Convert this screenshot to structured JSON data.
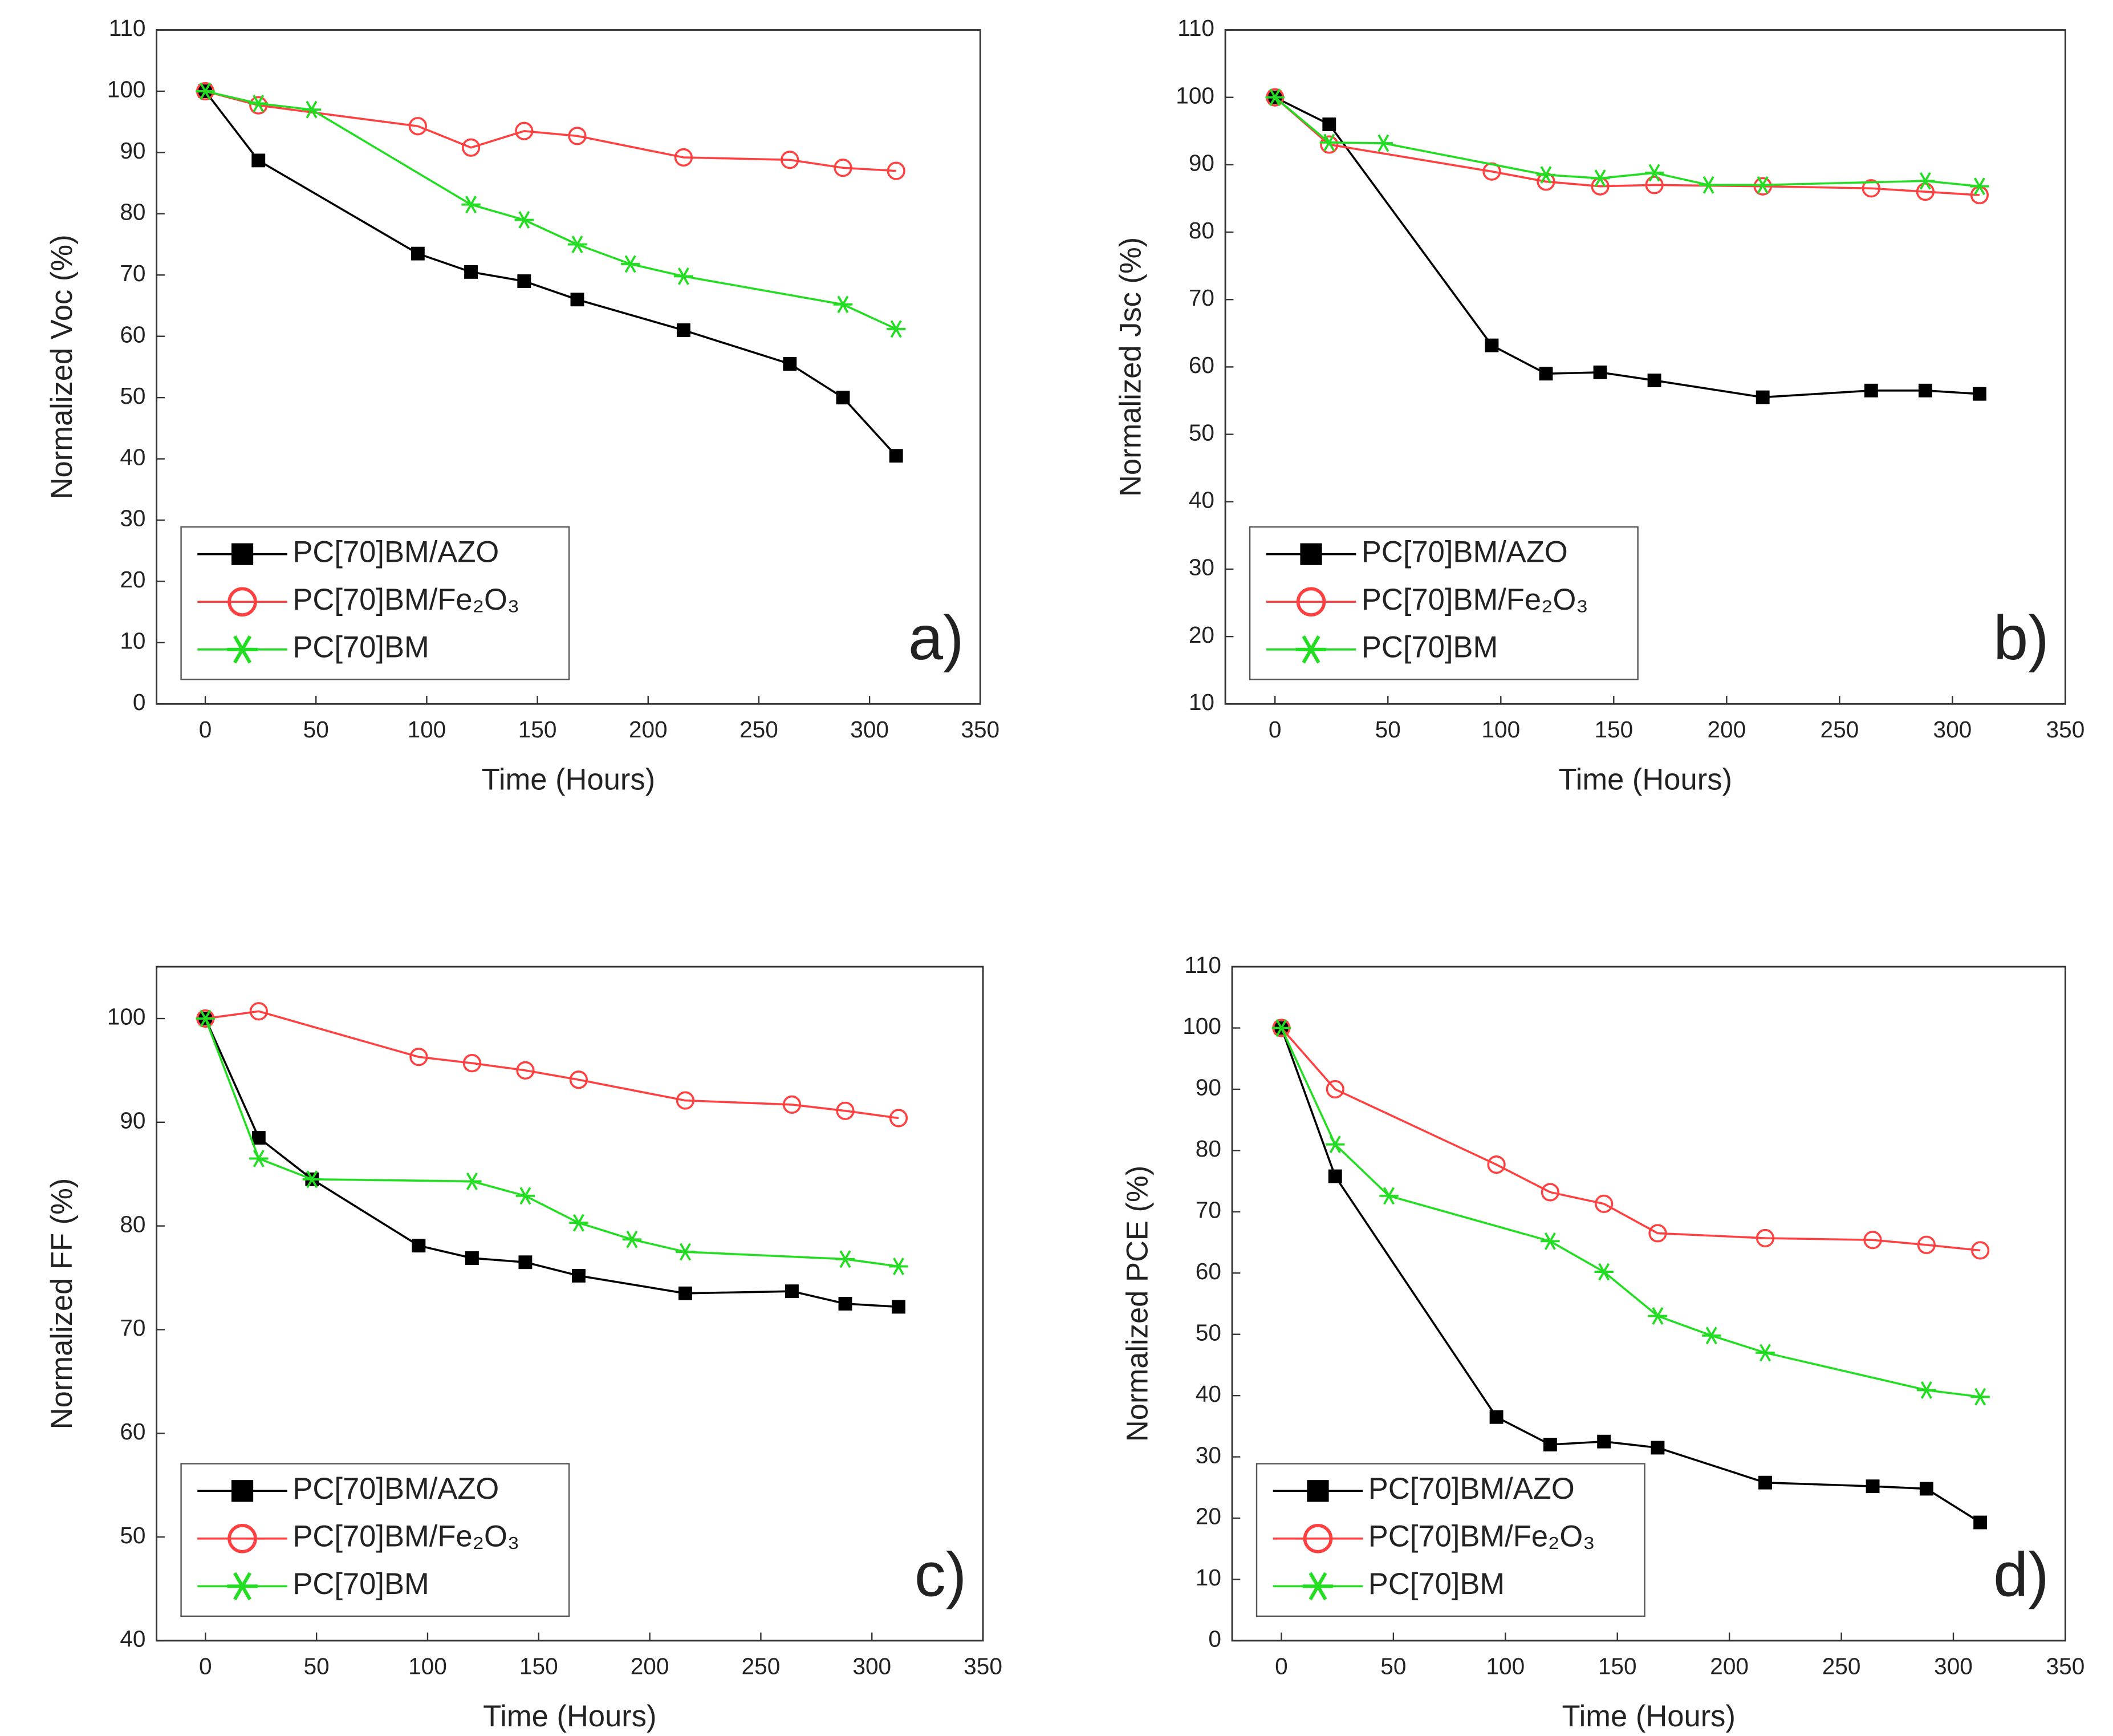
{
  "chart_data": [
    {
      "type": "line",
      "annotation": "a)",
      "xlabel": "Time (Hours)",
      "ylabel": "Normalized Voc (%)",
      "xlim": [
        -22,
        350
      ],
      "xticks": [
        0,
        50,
        100,
        150,
        200,
        250,
        300,
        350
      ],
      "ylim": [
        0,
        110
      ],
      "yticks": [
        0,
        10,
        20,
        30,
        40,
        50,
        60,
        70,
        80,
        90,
        100,
        110
      ],
      "legend": "lower left",
      "series": [
        {
          "name": "PC[70]BM/AZO",
          "color": "#000000",
          "marker": "square",
          "x": [
            0,
            24,
            96,
            120,
            144,
            168,
            216,
            264,
            288,
            312
          ],
          "values": [
            100,
            88.7,
            73.5,
            70.5,
            69,
            66,
            61,
            55.5,
            50,
            40.5
          ]
        },
        {
          "name": "PC[70]BM/Fe₂O₃",
          "color": "#ff4040",
          "marker": "circle",
          "x": [
            0,
            24,
            96,
            120,
            144,
            168,
            216,
            264,
            288,
            312
          ],
          "values": [
            100,
            97.7,
            94.3,
            90.8,
            93.5,
            92.7,
            89.2,
            88.8,
            87.5,
            87
          ]
        },
        {
          "name": "PC[70]BM",
          "color": "#22dd22",
          "marker": "star",
          "x": [
            0,
            24,
            48,
            120,
            144,
            168,
            192,
            216,
            288,
            312
          ],
          "values": [
            100,
            98,
            97,
            81.5,
            79,
            75,
            71.8,
            69.8,
            65.2,
            61.2
          ]
        }
      ]
    },
    {
      "type": "line",
      "annotation": "b)",
      "xlabel": "Time (Hours)",
      "ylabel": "Normalized Jsc (%)",
      "xlim": [
        -22,
        350
      ],
      "xticks": [
        0,
        50,
        100,
        150,
        200,
        250,
        300,
        350
      ],
      "ylim": [
        10,
        110
      ],
      "yticks": [
        10,
        20,
        30,
        40,
        50,
        60,
        70,
        80,
        90,
        100,
        110
      ],
      "legend": "lower left",
      "series": [
        {
          "name": "PC[70]BM/AZO",
          "color": "#000000",
          "marker": "square",
          "x": [
            0,
            24,
            96,
            120,
            144,
            168,
            216,
            264,
            288,
            312
          ],
          "values": [
            100,
            96,
            63.2,
            59,
            59.2,
            58,
            55.5,
            56.5,
            56.5,
            56
          ]
        },
        {
          "name": "PC[70]BM/Fe₂O₃",
          "color": "#ff4040",
          "marker": "circle",
          "x": [
            0,
            24,
            96,
            120,
            144,
            168,
            216,
            264,
            288,
            312
          ],
          "values": [
            100,
            93,
            89,
            87.5,
            86.8,
            87,
            86.8,
            86.5,
            86,
            85.5
          ]
        },
        {
          "name": "PC[70]BM",
          "color": "#22dd22",
          "marker": "star",
          "x": [
            0,
            24,
            48,
            120,
            144,
            168,
            192,
            216,
            288,
            312
          ],
          "values": [
            100,
            93.3,
            93.2,
            88.5,
            88,
            88.8,
            87,
            87,
            87.6,
            86.8
          ]
        }
      ]
    },
    {
      "type": "line",
      "annotation": "c)",
      "xlabel": "Time (Hours)",
      "ylabel": "Normalized FF (%)",
      "xlim": [
        -22,
        350
      ],
      "xticks": [
        0,
        50,
        100,
        150,
        200,
        250,
        300,
        350
      ],
      "ylim": [
        40,
        105
      ],
      "yticks": [
        40,
        50,
        60,
        70,
        80,
        90,
        100
      ],
      "legend": "lower left",
      "series": [
        {
          "name": "PC[70]BM/AZO",
          "color": "#000000",
          "marker": "square",
          "x": [
            0,
            24,
            48,
            96,
            120,
            144,
            168,
            216,
            264,
            288,
            312
          ],
          "values": [
            100,
            88.5,
            84.5,
            78.1,
            76.9,
            76.5,
            75.2,
            73.5,
            73.7,
            72.5,
            72.2
          ]
        },
        {
          "name": "PC[70]BM/Fe₂O₃",
          "color": "#ff4040",
          "marker": "circle",
          "x": [
            0,
            24,
            96,
            120,
            144,
            168,
            216,
            264,
            288,
            312
          ],
          "values": [
            100,
            100.7,
            96.3,
            95.7,
            95,
            94.1,
            92.1,
            91.7,
            91.1,
            90.4
          ]
        },
        {
          "name": "PC[70]BM",
          "color": "#22dd22",
          "marker": "star",
          "x": [
            0,
            24,
            48,
            120,
            144,
            168,
            192,
            216,
            288,
            312
          ],
          "values": [
            100,
            86.5,
            84.5,
            84.3,
            82.9,
            80.3,
            78.7,
            77.5,
            76.8,
            76.1
          ]
        }
      ]
    },
    {
      "type": "line",
      "annotation": "d)",
      "xlabel": "Time (Hours)",
      "ylabel": "Normalized PCE (%)",
      "xlim": [
        -22,
        350
      ],
      "xticks": [
        0,
        50,
        100,
        150,
        200,
        250,
        300,
        350
      ],
      "ylim": [
        0,
        110
      ],
      "yticks": [
        0,
        10,
        20,
        30,
        40,
        50,
        60,
        70,
        80,
        90,
        100,
        110
      ],
      "legend": "lower left",
      "series": [
        {
          "name": "PC[70]BM/AZO",
          "color": "#000000",
          "marker": "square",
          "x": [
            0,
            24,
            96,
            120,
            144,
            168,
            216,
            264,
            288,
            312
          ],
          "values": [
            100,
            75.8,
            36.5,
            32,
            32.5,
            31.5,
            25.8,
            25.2,
            24.8,
            19.3
          ]
        },
        {
          "name": "PC[70]BM/Fe₂O₃",
          "color": "#ff4040",
          "marker": "circle",
          "x": [
            0,
            24,
            96,
            120,
            144,
            168,
            216,
            264,
            288,
            312
          ],
          "values": [
            100,
            90,
            77.7,
            73.2,
            71.3,
            66.5,
            65.7,
            65.4,
            64.6,
            63.7
          ]
        },
        {
          "name": "PC[70]BM",
          "color": "#22dd22",
          "marker": "star",
          "x": [
            0,
            24,
            48,
            120,
            144,
            168,
            192,
            216,
            288,
            312
          ],
          "values": [
            100,
            81,
            72.6,
            65.2,
            60.2,
            53,
            49.8,
            47,
            40.9,
            39.8
          ]
        }
      ]
    }
  ]
}
